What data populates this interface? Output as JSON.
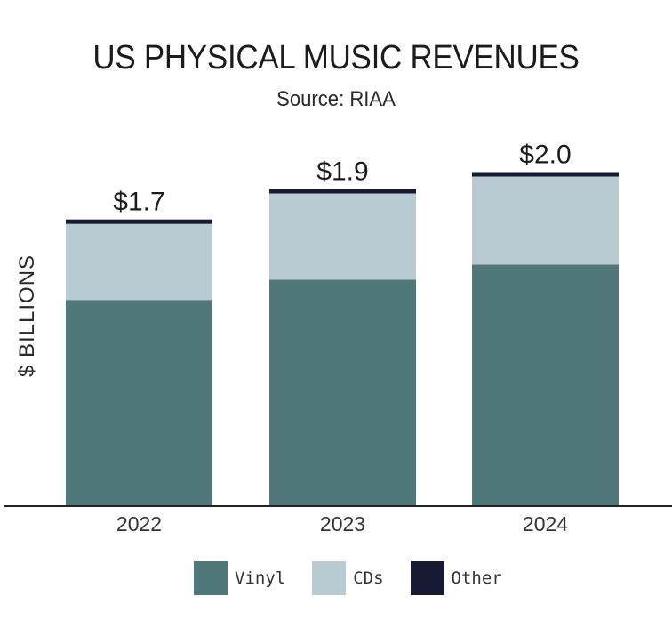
{
  "chart_data": {
    "type": "bar",
    "stacked": true,
    "title": "US PHYSICAL MUSIC REVENUES",
    "subtitle": "Source: RIAA",
    "ylabel": "$ BILLIONS",
    "xlabel": "",
    "categories": [
      "2022",
      "2023",
      "2024"
    ],
    "series": [
      {
        "name": "Vinyl",
        "color": "#50787b",
        "values": [
          1.22,
          1.34,
          1.43
        ]
      },
      {
        "name": "CDs",
        "color": "#b8cbd3",
        "values": [
          0.45,
          0.51,
          0.52
        ]
      },
      {
        "name": "Other",
        "color": "#161a33",
        "values": [
          0.03,
          0.03,
          0.03
        ]
      }
    ],
    "totals_labels": [
      "$1.7",
      "$1.9",
      "$2.0"
    ],
    "ylim": [
      0,
      2.0
    ],
    "grid": false,
    "legend_position": "bottom"
  }
}
